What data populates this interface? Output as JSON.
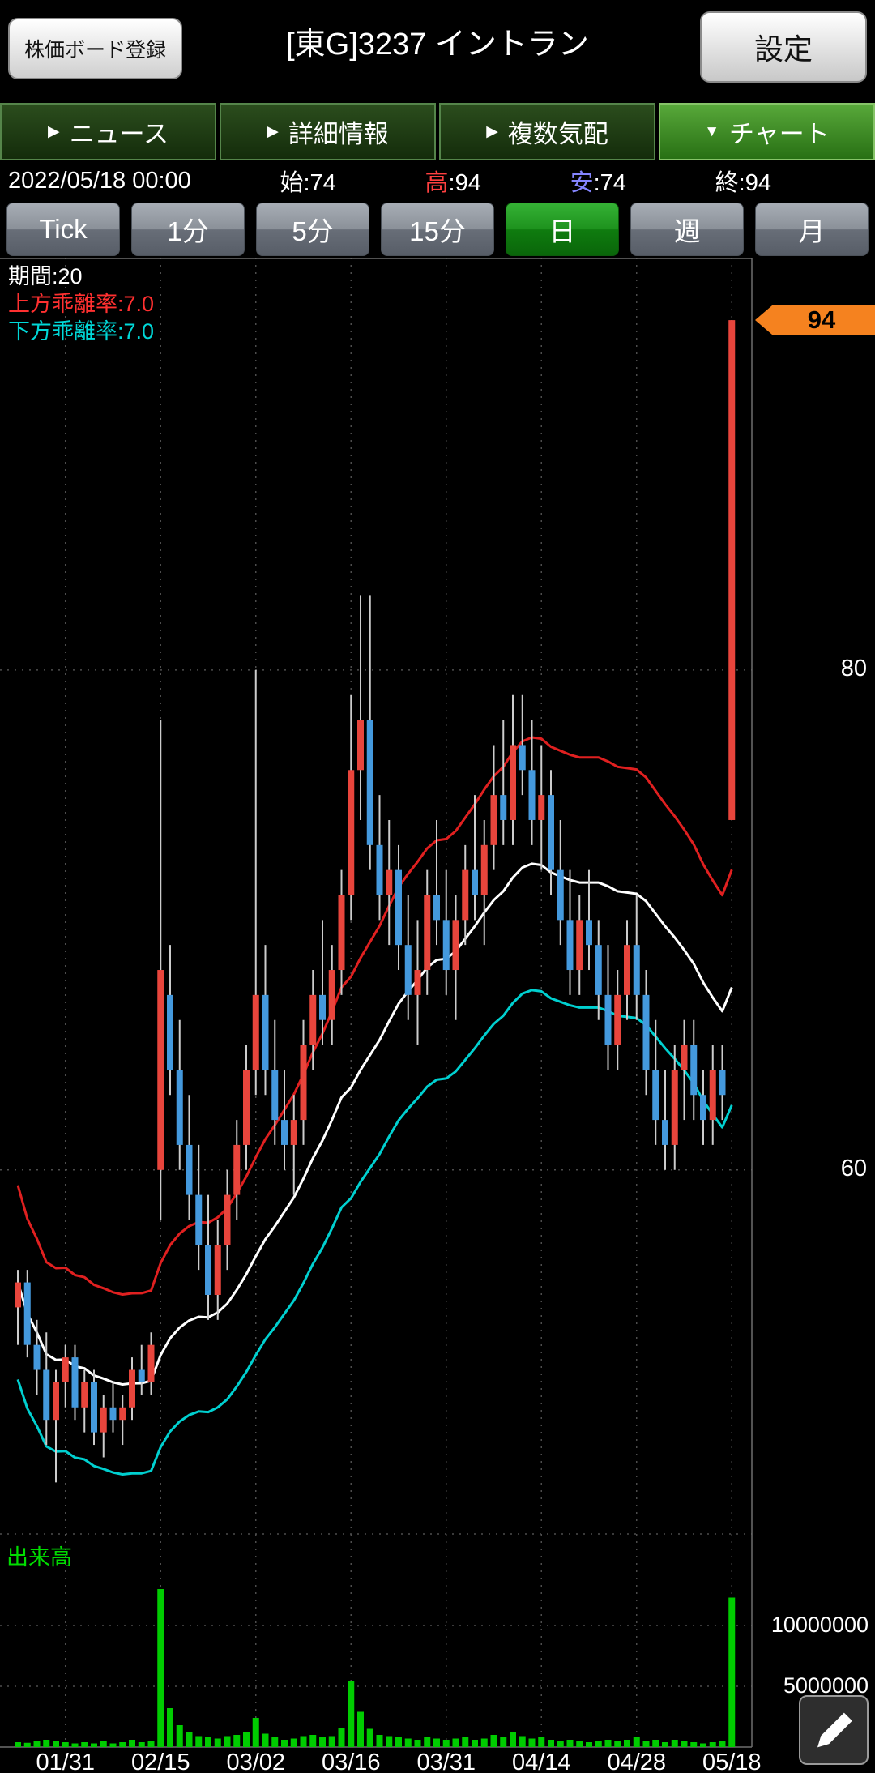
{
  "header": {
    "board_button": "株価ボード登録",
    "title": "[東G]3237 イントラン",
    "settings_button": "設定"
  },
  "tabs": [
    {
      "label": "ニュース",
      "arrow": "▶",
      "selected": false
    },
    {
      "label": "詳細情報",
      "arrow": "▶",
      "selected": false
    },
    {
      "label": "複数気配",
      "arrow": "▶",
      "selected": false
    },
    {
      "label": "チャート",
      "arrow": "▼",
      "selected": true
    }
  ],
  "quote": {
    "datetime": "2022/05/18 00:00",
    "open_label": "始",
    "open": ":74",
    "high_label": "高",
    "high": ":94",
    "low_label": "安",
    "low": ":74",
    "close_label": "終",
    "close": ":94"
  },
  "timeframes": [
    {
      "label": "Tick",
      "selected": false
    },
    {
      "label": "1分",
      "selected": false
    },
    {
      "label": "5分",
      "selected": false
    },
    {
      "label": "15分",
      "selected": false
    },
    {
      "label": "日",
      "selected": true
    },
    {
      "label": "週",
      "selected": false
    },
    {
      "label": "月",
      "selected": false
    }
  ],
  "legend": {
    "period": "期間:20",
    "upper": "上方乖離率:7.0",
    "lower": "下方乖離率:7.0"
  },
  "price_axis": {
    "last_price_tag": "94",
    "ticks": [
      "80",
      "60"
    ]
  },
  "volume_axis": {
    "label": "出来高",
    "ticks": [
      "10000000",
      "5000000"
    ]
  },
  "colors": {
    "up": "#e8453c",
    "down": "#4499dd",
    "wick": "#cccccc",
    "volume": "#00cc00",
    "ma": "#ffffff",
    "env_upper": "#e02020",
    "env_lower": "#00d0d0",
    "tag": "#f5821f"
  },
  "chart_data": {
    "type": "candlestick",
    "title": "[東G]3237 イントラン 日足",
    "indicator": "envelope",
    "period": 20,
    "envelope_pct": 7.0,
    "ylim": [
      45.5,
      96.5
    ],
    "volume_ylim": [
      0,
      14000000
    ],
    "grid": true,
    "candles_columns": [
      "date",
      "open",
      "high",
      "low",
      "close",
      "volume"
    ],
    "candles": [
      [
        "01/24",
        54.5,
        56,
        53,
        55.5,
        400000
      ],
      [
        "01/25",
        55.5,
        56,
        52.5,
        53,
        350000
      ],
      [
        "01/26",
        53,
        54,
        51,
        52,
        500000
      ],
      [
        "01/27",
        52,
        53.5,
        49,
        50,
        600000
      ],
      [
        "01/28",
        50,
        52,
        47.5,
        51.5,
        500000
      ],
      [
        "01/31",
        51.5,
        53,
        50.5,
        52.5,
        400000
      ],
      [
        "02/01",
        52.5,
        53,
        50,
        50.5,
        300000
      ],
      [
        "02/02",
        50.5,
        52,
        49.5,
        51.5,
        400000
      ],
      [
        "02/03",
        51.5,
        52,
        49,
        49.5,
        300000
      ],
      [
        "02/04",
        49.5,
        51,
        48.5,
        50.5,
        500000
      ],
      [
        "02/07",
        50.5,
        51.5,
        49.5,
        50,
        300000
      ],
      [
        "02/08",
        50,
        51,
        49,
        50.5,
        400000
      ],
      [
        "02/09",
        50.5,
        52.5,
        50,
        52,
        600000
      ],
      [
        "02/10",
        52,
        53,
        51,
        51.5,
        400000
      ],
      [
        "02/14",
        51.5,
        53.5,
        51,
        53,
        500000
      ],
      [
        "02/15",
        60,
        78,
        58,
        68,
        13000000
      ],
      [
        "02/16",
        67,
        69,
        63,
        64,
        3200000
      ],
      [
        "02/17",
        64,
        66,
        60,
        61,
        1800000
      ],
      [
        "02/18",
        61,
        63,
        58,
        59,
        1200000
      ],
      [
        "02/21",
        59,
        61,
        56,
        57,
        900000
      ],
      [
        "02/22",
        57,
        59,
        54,
        55,
        800000
      ],
      [
        "02/24",
        55,
        58,
        54,
        57,
        700000
      ],
      [
        "02/25",
        57,
        60,
        56,
        59,
        900000
      ],
      [
        "02/28",
        59,
        62,
        58,
        61,
        1000000
      ],
      [
        "03/01",
        61,
        65,
        60,
        64,
        1200000
      ],
      [
        "03/02",
        64,
        80,
        63,
        67,
        2400000
      ],
      [
        "03/03",
        67,
        69,
        63,
        64,
        1100000
      ],
      [
        "03/04",
        64,
        66,
        61,
        62,
        800000
      ],
      [
        "03/07",
        62,
        64,
        60,
        61,
        600000
      ],
      [
        "03/08",
        61,
        63,
        59,
        62,
        700000
      ],
      [
        "03/09",
        62,
        66,
        61,
        65,
        900000
      ],
      [
        "03/10",
        65,
        68,
        64,
        67,
        1000000
      ],
      [
        "03/11",
        67,
        70,
        65,
        66,
        800000
      ],
      [
        "03/14",
        66,
        69,
        65,
        68,
        900000
      ],
      [
        "03/15",
        68,
        72,
        67,
        71,
        1600000
      ],
      [
        "03/16",
        71,
        79,
        70,
        76,
        5400000
      ],
      [
        "03/17",
        76,
        83,
        74,
        78,
        2900000
      ],
      [
        "03/18",
        78,
        83,
        72,
        73,
        1500000
      ],
      [
        "03/22",
        73,
        75,
        70,
        71,
        1000000
      ],
      [
        "03/23",
        71,
        74,
        69,
        72,
        900000
      ],
      [
        "03/24",
        72,
        73,
        68,
        69,
        800000
      ],
      [
        "03/25",
        69,
        71,
        66,
        67,
        700000
      ],
      [
        "03/28",
        67,
        70,
        65,
        68,
        600000
      ],
      [
        "03/29",
        68,
        72,
        67,
        71,
        800000
      ],
      [
        "03/30",
        71,
        74,
        69,
        70,
        700000
      ],
      [
        "03/31",
        70,
        72,
        67,
        68,
        600000
      ],
      [
        "04/01",
        68,
        71,
        66,
        70,
        700000
      ],
      [
        "04/04",
        70,
        73,
        69,
        72,
        800000
      ],
      [
        "04/05",
        72,
        75,
        70,
        71,
        600000
      ],
      [
        "04/06",
        71,
        74,
        69,
        73,
        700000
      ],
      [
        "04/07",
        73,
        77,
        72,
        75,
        1000000
      ],
      [
        "04/08",
        75,
        78,
        73,
        74,
        800000
      ],
      [
        "04/11",
        74,
        79,
        73,
        77,
        1200000
      ],
      [
        "04/12",
        77,
        79,
        75,
        76,
        900000
      ],
      [
        "04/13",
        76,
        78,
        73,
        74,
        700000
      ],
      [
        "04/14",
        74,
        77,
        72,
        75,
        800000
      ],
      [
        "04/15",
        75,
        76,
        71,
        72,
        600000
      ],
      [
        "04/18",
        72,
        74,
        69,
        70,
        500000
      ],
      [
        "04/19",
        70,
        72,
        67,
        68,
        600000
      ],
      [
        "04/20",
        68,
        71,
        67,
        70,
        500000
      ],
      [
        "04/21",
        70,
        72,
        68,
        69,
        400000
      ],
      [
        "04/22",
        69,
        70,
        66,
        67,
        500000
      ],
      [
        "04/25",
        67,
        69,
        64,
        65,
        600000
      ],
      [
        "04/26",
        65,
        68,
        64,
        67,
        500000
      ],
      [
        "04/27",
        67,
        70,
        66,
        69,
        600000
      ],
      [
        "04/28",
        69,
        71,
        66,
        67,
        800000
      ],
      [
        "05/02",
        67,
        68,
        63,
        64,
        500000
      ],
      [
        "05/06",
        64,
        66,
        61,
        62,
        600000
      ],
      [
        "05/09",
        62,
        64,
        60,
        61,
        400000
      ],
      [
        "05/10",
        61,
        65,
        60,
        64,
        600000
      ],
      [
        "05/11",
        64,
        66,
        62,
        65,
        500000
      ],
      [
        "05/12",
        65,
        66,
        62,
        63,
        400000
      ],
      [
        "05/13",
        63,
        64,
        61,
        62,
        300000
      ],
      [
        "05/16",
        62,
        65,
        61,
        64,
        400000
      ],
      [
        "05/17",
        64,
        65,
        62,
        63,
        500000
      ],
      [
        "05/18",
        74,
        94,
        74,
        94,
        12300000
      ]
    ],
    "xticks": [
      {
        "label": "01/31",
        "i": 5
      },
      {
        "label": "02/15",
        "i": 15
      },
      {
        "label": "03/02",
        "i": 25
      },
      {
        "label": "03/16",
        "i": 35
      },
      {
        "label": "03/31",
        "i": 45
      },
      {
        "label": "04/14",
        "i": 55
      },
      {
        "label": "04/28",
        "i": 65
      },
      {
        "label": "05/18",
        "i": 75
      }
    ]
  }
}
